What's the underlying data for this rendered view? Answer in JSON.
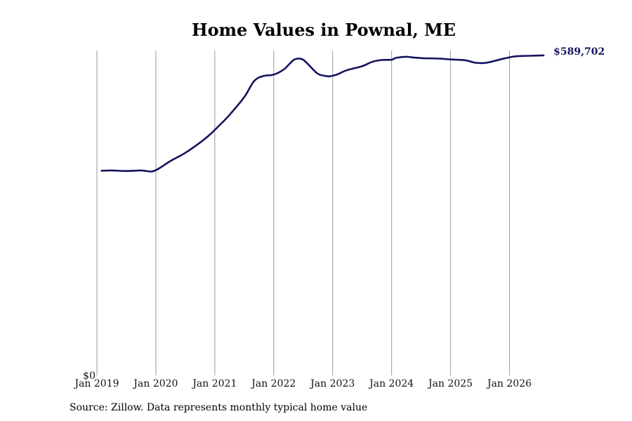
{
  "chart_data": {
    "type": "line",
    "title": "Home Values in Pownal, ME",
    "xlabel": "",
    "ylabel": "",
    "source": "Source: Zillow. Data represents monthly typical home value",
    "xlim": [
      2019.0,
      2027.4
    ],
    "ylim": [
      0,
      600000
    ],
    "y_tick_labels": [
      {
        "value": 0,
        "label": "$0"
      }
    ],
    "x_ticks": [
      {
        "value": 2019,
        "label": "Jan 2019"
      },
      {
        "value": 2020,
        "label": "Jan 2020"
      },
      {
        "value": 2021,
        "label": "Jan 2021"
      },
      {
        "value": 2022,
        "label": "Jan 2022"
      },
      {
        "value": 2023,
        "label": "Jan 2023"
      },
      {
        "value": 2024,
        "label": "Jan 2024"
      },
      {
        "value": 2025,
        "label": "Jan 2025"
      },
      {
        "value": 2026,
        "label": "Jan 2026"
      }
    ],
    "grid": "vertical",
    "line_color": "#14125e",
    "end_label": "$589,702",
    "series": [
      {
        "x": [
          2019.08,
          2019.25,
          2019.5,
          2019.75,
          2019.92,
          2020.0,
          2020.08,
          2020.25,
          2020.5,
          2020.75,
          2020.92,
          2021.08,
          2021.25,
          2021.5,
          2021.67,
          2021.83,
          2022.0,
          2022.17,
          2022.33,
          2022.42,
          2022.5,
          2022.58,
          2022.75,
          2022.92,
          2023.0,
          2023.08,
          2023.25,
          2023.5,
          2023.67,
          2023.83,
          2024.0,
          2024.08,
          2024.25,
          2024.33,
          2024.5,
          2024.67,
          2024.83,
          2025.0,
          2025.25,
          2025.42,
          2025.58,
          2025.75,
          2025.92,
          2026.08,
          2026.25,
          2026.42,
          2026.58
        ],
        "y": [
          378000,
          378500,
          377500,
          378500,
          376500,
          379000,
          384000,
          396000,
          411000,
          430000,
          445000,
          462000,
          481000,
          514000,
          544000,
          553000,
          555500,
          565000,
          582000,
          585000,
          583000,
          575000,
          557000,
          552500,
          553500,
          556000,
          564000,
          571000,
          579000,
          582500,
          583000,
          586500,
          588500,
          587500,
          586000,
          585500,
          585000,
          583500,
          582000,
          577500,
          577000,
          581000,
          585500,
          589000,
          590000,
          590500,
          591000
        ]
      }
    ]
  }
}
